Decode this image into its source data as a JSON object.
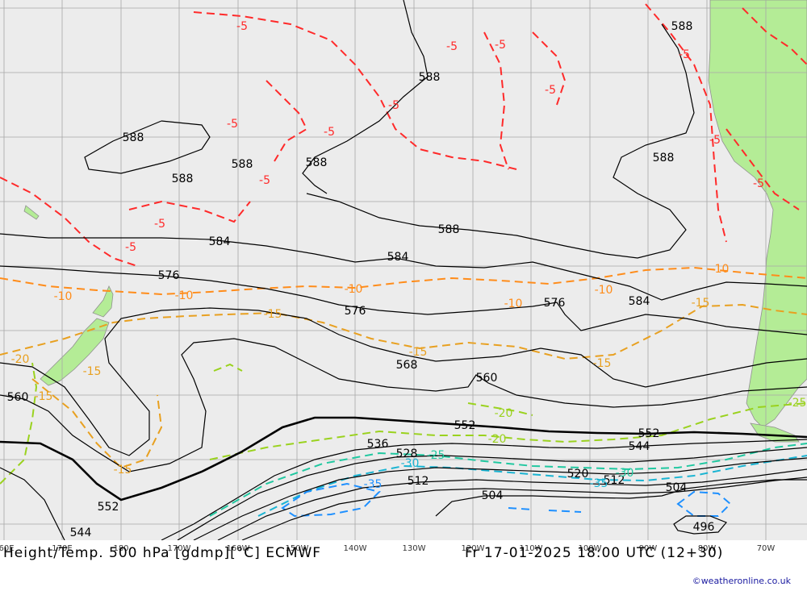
{
  "title": {
    "left": "Height/Temp. 500 hPa [gdmp][°C] ECMWF",
    "right": "Fr 17-01-2025 18:00 UTC (12+30)"
  },
  "credit": "©weatheronline.co.uk",
  "longitude_labels": [
    "60E",
    "170E",
    "180",
    "170W",
    "160W",
    "150W",
    "140W",
    "130W",
    "120W",
    "110W",
    "100W",
    "90W",
    "80W",
    "70W"
  ],
  "height_labels": [
    "588",
    "588",
    "588",
    "588",
    "588",
    "588",
    "588",
    "588",
    "584",
    "584",
    "584",
    "576",
    "576",
    "576",
    "568",
    "560",
    "560",
    "552",
    "552",
    "552",
    "544",
    "544",
    "536",
    "528",
    "520",
    "512",
    "512",
    "504",
    "504",
    "496"
  ],
  "temperature_labels": [
    "-5",
    "-5",
    "-5",
    "-5",
    "-5",
    "-5",
    "-5",
    "-5",
    "-5",
    "-5",
    "-5",
    "-5",
    "-5",
    "-10",
    "-10",
    "-10",
    "-10",
    "-10",
    "-10",
    "-15",
    "-15",
    "-15",
    "-15",
    "-15",
    "-15",
    "-15",
    "-20",
    "-20",
    "-20",
    "-25",
    "-25",
    "-30",
    "-30",
    "-35",
    "-35"
  ],
  "colors": {
    "ocean": "#ececec",
    "land": "#b4ec96",
    "grid": "#a8a8a8",
    "height_contour": "#000000",
    "temp_m5": "#ff2a2a",
    "temp_m10": "#ff8c1a",
    "temp_m15": "#e8a020",
    "temp_m20": "#9ad21e",
    "temp_m25": "#20c8a0",
    "temp_m30": "#1ab4d2",
    "temp_m35": "#1e90ff"
  }
}
